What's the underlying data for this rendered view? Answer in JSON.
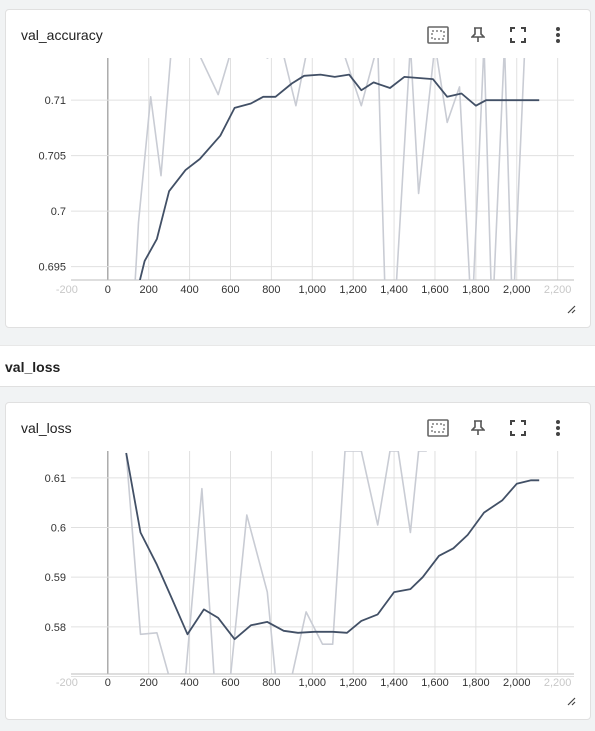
{
  "section": {
    "title": "val_loss"
  },
  "toolbar_icons": [
    "fit-domain-icon",
    "pin-icon",
    "fullscreen-icon",
    "more-vert-icon"
  ],
  "chart_data": [
    {
      "type": "line",
      "title": "val_accuracy",
      "xlabel": "",
      "ylabel": "",
      "xlim": [
        -180,
        2280
      ],
      "ylim": [
        0.6938,
        0.7138
      ],
      "x_ticks": [
        -200,
        0,
        200,
        400,
        600,
        800,
        1000,
        1200,
        1400,
        1600,
        1800,
        2000,
        2200
      ],
      "x_tick_labels": [
        "-200",
        "0",
        "200",
        "400",
        "600",
        "800",
        "1,000",
        "1,200",
        "1,400",
        "1,600",
        "1,800",
        "2,000",
        "2,200"
      ],
      "y_ticks": [
        0.695,
        0.7,
        0.705,
        0.71
      ],
      "y_tick_labels": [
        "0.695",
        "0.7",
        "0.705",
        "0.71"
      ],
      "grid": true,
      "colors": {
        "smoothed": "#425066",
        "raw": "#c9ccd4"
      },
      "series": [
        {
          "role": "smoothed",
          "x": [
            140,
            180,
            240,
            300,
            380,
            450,
            550,
            620,
            700,
            760,
            820,
            900,
            960,
            1040,
            1110,
            1180,
            1240,
            1300,
            1380,
            1450,
            1520,
            1590,
            1660,
            1730,
            1800,
            1850,
            1920,
            2000,
            2070,
            2110
          ],
          "y": [
            0.6925,
            0.6955,
            0.6975,
            0.7018,
            0.7037,
            0.7047,
            0.7068,
            0.7093,
            0.7097,
            0.7103,
            0.7103,
            0.7115,
            0.7122,
            0.7123,
            0.7121,
            0.7123,
            0.7109,
            0.7116,
            0.7111,
            0.7121,
            0.712,
            0.7119,
            0.7103,
            0.7106,
            0.7095,
            0.71,
            0.71,
            0.71,
            0.71,
            0.71
          ]
        },
        {
          "role": "raw",
          "x": [
            130,
            150,
            210,
            260,
            310,
            340,
            400,
            450,
            540,
            620,
            700,
            780,
            800,
            860,
            920,
            980,
            1060,
            1140,
            1240,
            1320,
            1360,
            1400,
            1480,
            1520,
            1600,
            1660,
            1720,
            1780,
            1840,
            1880,
            1940,
            1980,
            2040,
            2080,
            2120
          ],
          "y": [
            0.6925,
            0.699,
            0.7103,
            0.7032,
            0.7145,
            0.7155,
            0.714,
            0.714,
            0.7105,
            0.7155,
            0.715,
            0.7138,
            0.714,
            0.714,
            0.7095,
            0.715,
            0.715,
            0.715,
            0.7095,
            0.715,
            0.69,
            0.69,
            0.715,
            0.7016,
            0.715,
            0.708,
            0.7112,
            0.69,
            0.715,
            0.69,
            0.715,
            0.69,
            0.715,
            0.715,
            0.715
          ]
        }
      ]
    },
    {
      "type": "line",
      "title": "val_loss",
      "xlabel": "",
      "ylabel": "",
      "xlim": [
        -180,
        2280
      ],
      "ylim": [
        0.5705,
        0.6154
      ],
      "x_ticks": [
        -200,
        0,
        200,
        400,
        600,
        800,
        1000,
        1200,
        1400,
        1600,
        1800,
        2000,
        2200
      ],
      "x_tick_labels": [
        "-200",
        "0",
        "200",
        "400",
        "600",
        "800",
        "1,000",
        "1,200",
        "1,400",
        "1,600",
        "1,800",
        "2,000",
        "2,200"
      ],
      "y_ticks": [
        0.57,
        0.58,
        0.59,
        0.6,
        0.61
      ],
      "y_tick_labels": [
        "0.57",
        "0.58",
        "0.59",
        "0.6",
        "0.61"
      ],
      "grid": true,
      "colors": {
        "smoothed": "#425066",
        "raw": "#c9ccd4"
      },
      "series": [
        {
          "role": "smoothed",
          "x": [
            90,
            160,
            240,
            310,
            390,
            470,
            540,
            620,
            700,
            780,
            860,
            930,
            1010,
            1100,
            1170,
            1240,
            1320,
            1400,
            1480,
            1540,
            1620,
            1690,
            1760,
            1840,
            1930,
            2000,
            2070,
            2110
          ],
          "y": [
            0.615,
            0.599,
            0.5925,
            0.586,
            0.5785,
            0.5835,
            0.5818,
            0.5775,
            0.5803,
            0.581,
            0.5792,
            0.5788,
            0.579,
            0.579,
            0.5788,
            0.5812,
            0.5825,
            0.587,
            0.5876,
            0.59,
            0.5943,
            0.5958,
            0.5985,
            0.603,
            0.6055,
            0.6088,
            0.6095,
            0.6095
          ]
        },
        {
          "role": "raw",
          "x": [
            90,
            160,
            240,
            300,
            380,
            460,
            520,
            600,
            680,
            780,
            820,
            900,
            970,
            1050,
            1100,
            1160,
            1240,
            1320,
            1380,
            1420,
            1480,
            1520,
            1560
          ],
          "y": [
            0.615,
            0.5785,
            0.5788,
            0.57,
            0.57,
            0.6078,
            0.57,
            0.57,
            0.6025,
            0.587,
            0.57,
            0.57,
            0.583,
            0.5765,
            0.5765,
            0.6154,
            0.6154,
            0.6005,
            0.6154,
            0.6154,
            0.599,
            0.6154,
            0.6154
          ]
        }
      ]
    }
  ]
}
